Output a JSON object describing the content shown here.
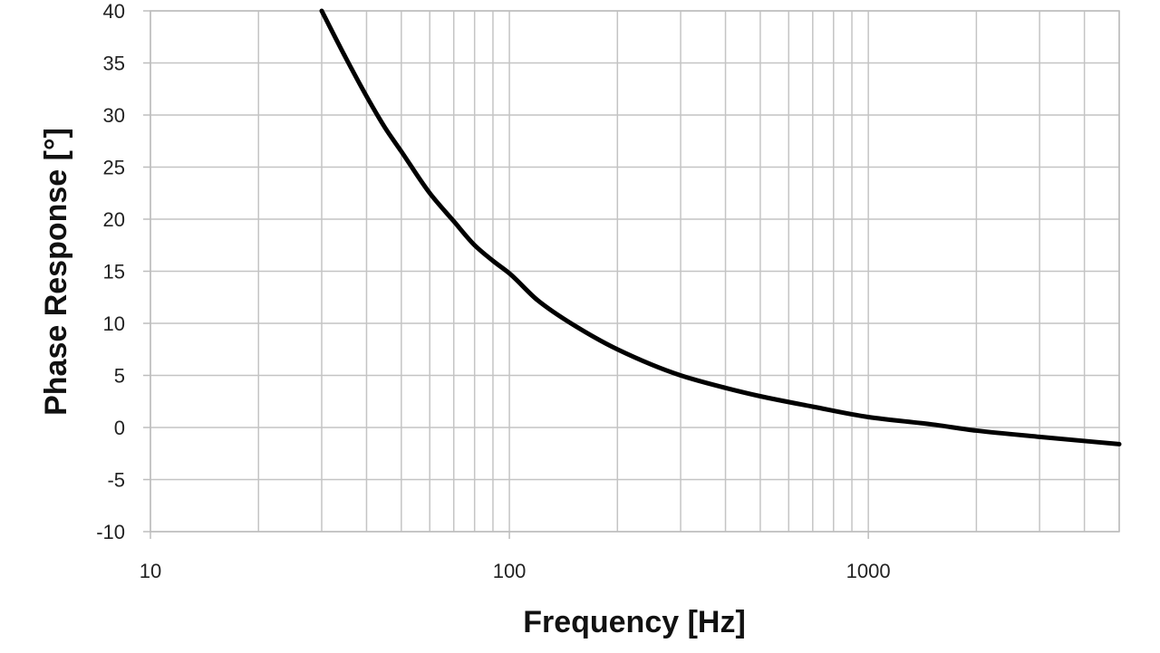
{
  "chart_data": {
    "type": "line",
    "xlabel": "Frequency [Hz]",
    "ylabel": "Phase Response [°]",
    "x_scale": "log",
    "xlim": [
      10,
      5000
    ],
    "ylim": [
      -10,
      40
    ],
    "x_ticks": [
      "10",
      "100",
      "1000"
    ],
    "y_ticks": [
      "40",
      "35",
      "30",
      "25",
      "20",
      "15",
      "10",
      "5",
      "0",
      "-5",
      "-10"
    ],
    "grid": true,
    "series": [
      {
        "color": "#000000",
        "x": [
          30,
          35,
          40,
          45,
          50,
          60,
          70,
          80,
          90,
          100,
          120,
          150,
          200,
          300,
          400,
          500,
          700,
          1000,
          1500,
          2000,
          3000,
          5000
        ],
        "y": [
          40,
          35.5,
          31.8,
          28.8,
          26.5,
          22.5,
          19.8,
          17.5,
          16.0,
          14.8,
          12.2,
          9.9,
          7.5,
          5.0,
          3.8,
          3.0,
          2.0,
          1.0,
          0.3,
          -0.3,
          -0.9,
          -1.6
        ]
      }
    ]
  }
}
